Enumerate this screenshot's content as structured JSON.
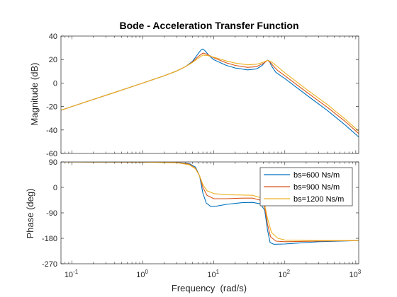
{
  "chart_data": {
    "type": "line",
    "title": "Bode - Acceleration Transfer Function",
    "xlabel": "Frequency  (rad/s)",
    "x_scale": "log",
    "xlim": [
      0.07,
      1100
    ],
    "x_ticks": [
      0.1,
      1,
      10,
      100,
      1000
    ],
    "x_tick_labels": [
      {
        "base": "10",
        "exp": "-1"
      },
      {
        "base": "10",
        "exp": "0"
      },
      {
        "base": "10",
        "exp": "1"
      },
      {
        "base": "10",
        "exp": "2"
      },
      {
        "base": "10",
        "exp": "3"
      }
    ],
    "grid": false,
    "colors": [
      "#0072BD",
      "#D95319",
      "#EDB120"
    ],
    "subplots": [
      {
        "name": "magnitude",
        "ylabel": "Magnitude (dB)",
        "ylim": [
          -60,
          40
        ],
        "y_ticks": [
          -60,
          -40,
          -20,
          0,
          20,
          40
        ],
        "y_tick_labels": [
          "-60",
          "-40",
          "-20",
          "0",
          "20",
          "40"
        ],
        "legend": null,
        "series": [
          {
            "name": "bs=600 Ns/m",
            "points": [
              [
                0.07,
                -23.2
              ],
              [
                0.1,
                -20
              ],
              [
                0.3,
                -10.5
              ],
              [
                1,
                0
              ],
              [
                2,
                6.2
              ],
              [
                3,
                10.3
              ],
              [
                4,
                14
              ],
              [
                5,
                18.5
              ],
              [
                6,
                25
              ],
              [
                6.6,
                28.2
              ],
              [
                7,
                29
              ],
              [
                7.5,
                27.5
              ],
              [
                8.5,
                23.5
              ],
              [
                10,
                19.8
              ],
              [
                15,
                15
              ],
              [
                20,
                12.8
              ],
              [
                30,
                11.2
              ],
              [
                40,
                12
              ],
              [
                48,
                15
              ],
              [
                54,
                18.5
              ],
              [
                57,
                19.4
              ],
              [
                60,
                19
              ],
              [
                65,
                14.5
              ],
              [
                75,
                9
              ],
              [
                100,
                3.8
              ],
              [
                200,
                -10
              ],
              [
                400,
                -23.5
              ],
              [
                700,
                -35.5
              ],
              [
                1100,
                -46
              ]
            ]
          },
          {
            "name": "bs=900 Ns/m",
            "points": [
              [
                0.07,
                -23.2
              ],
              [
                0.1,
                -20
              ],
              [
                0.3,
                -10.5
              ],
              [
                1,
                0
              ],
              [
                2,
                6.2
              ],
              [
                3,
                10.3
              ],
              [
                4,
                14
              ],
              [
                5,
                18
              ],
              [
                6,
                22.5
              ],
              [
                7,
                25.5
              ],
              [
                8,
                24.5
              ],
              [
                10,
                21.5
              ],
              [
                15,
                17.2
              ],
              [
                20,
                15
              ],
              [
                30,
                13.3
              ],
              [
                40,
                14
              ],
              [
                50,
                16.8
              ],
              [
                57,
                19.3
              ],
              [
                62,
                17.8
              ],
              [
                70,
                14
              ],
              [
                80,
                10.5
              ],
              [
                100,
                6.2
              ],
              [
                200,
                -7.5
              ],
              [
                400,
                -20.8
              ],
              [
                700,
                -32.5
              ],
              [
                1100,
                -43
              ]
            ]
          },
          {
            "name": "bs=1200 Ns/m",
            "points": [
              [
                0.07,
                -23.2
              ],
              [
                0.1,
                -20
              ],
              [
                0.3,
                -10.5
              ],
              [
                1,
                0
              ],
              [
                2,
                6.2
              ],
              [
                3,
                10.3
              ],
              [
                4,
                14
              ],
              [
                5,
                17.5
              ],
              [
                6,
                21
              ],
              [
                7,
                23.8
              ],
              [
                8,
                23.5
              ],
              [
                10,
                22
              ],
              [
                15,
                18.8
              ],
              [
                20,
                17
              ],
              [
                30,
                15.5
              ],
              [
                40,
                16
              ],
              [
                50,
                17.8
              ],
              [
                57,
                19.3
              ],
              [
                65,
                18
              ],
              [
                75,
                15
              ],
              [
                100,
                8.7
              ],
              [
                200,
                -5.2
              ],
              [
                400,
                -18.5
              ],
              [
                700,
                -30.5
              ],
              [
                1100,
                -41
              ]
            ]
          }
        ]
      },
      {
        "name": "phase",
        "ylabel": "Phase (deg)",
        "ylim": [
          -270,
          90
        ],
        "y_ticks": [
          -270,
          -180,
          -90,
          0,
          90
        ],
        "y_tick_labels": [
          "-270",
          "-180",
          "-90",
          "0",
          "90"
        ],
        "legend": "upper-right",
        "series": [
          {
            "name": "bs=600 Ns/m",
            "points": [
              [
                0.07,
                90
              ],
              [
                1,
                89.5
              ],
              [
                3,
                88
              ],
              [
                4.5,
                84
              ],
              [
                5.5,
                72
              ],
              [
                6.3,
                40
              ],
              [
                7,
                -20
              ],
              [
                7.8,
                -55
              ],
              [
                9,
                -67
              ],
              [
                11,
                -66
              ],
              [
                15,
                -60
              ],
              [
                25,
                -54
              ],
              [
                35,
                -53
              ],
              [
                45,
                -58
              ],
              [
                52,
                -80
              ],
              [
                57,
                -150
              ],
              [
                62,
                -195
              ],
              [
                70,
                -201
              ],
              [
                100,
                -200
              ],
              [
                300,
                -192
              ],
              [
                1100,
                -188
              ]
            ]
          },
          {
            "name": "bs=900 Ns/m",
            "points": [
              [
                0.07,
                90
              ],
              [
                1,
                89.5
              ],
              [
                3,
                88
              ],
              [
                4.5,
                82
              ],
              [
                5.5,
                68
              ],
              [
                6.3,
                40
              ],
              [
                7,
                0
              ],
              [
                8,
                -28
              ],
              [
                10,
                -40
              ],
              [
                15,
                -40
              ],
              [
                25,
                -38
              ],
              [
                35,
                -38
              ],
              [
                45,
                -45
              ],
              [
                52,
                -70
              ],
              [
                57,
                -130
              ],
              [
                63,
                -175
              ],
              [
                75,
                -190
              ],
              [
                100,
                -192
              ],
              [
                300,
                -190
              ],
              [
                1100,
                -188
              ]
            ]
          },
          {
            "name": "bs=1200 Ns/m",
            "points": [
              [
                0.07,
                90
              ],
              [
                1,
                89.5
              ],
              [
                3,
                87
              ],
              [
                4.5,
                80
              ],
              [
                5.5,
                66
              ],
              [
                6.3,
                40
              ],
              [
                7,
                10
              ],
              [
                8,
                -12
              ],
              [
                10,
                -22
              ],
              [
                15,
                -26
              ],
              [
                25,
                -27
              ],
              [
                35,
                -28
              ],
              [
                45,
                -36
              ],
              [
                52,
                -60
              ],
              [
                57,
                -110
              ],
              [
                65,
                -160
              ],
              [
                80,
                -180
              ],
              [
                100,
                -186
              ],
              [
                300,
                -188
              ],
              [
                1100,
                -188
              ]
            ]
          }
        ]
      }
    ]
  }
}
